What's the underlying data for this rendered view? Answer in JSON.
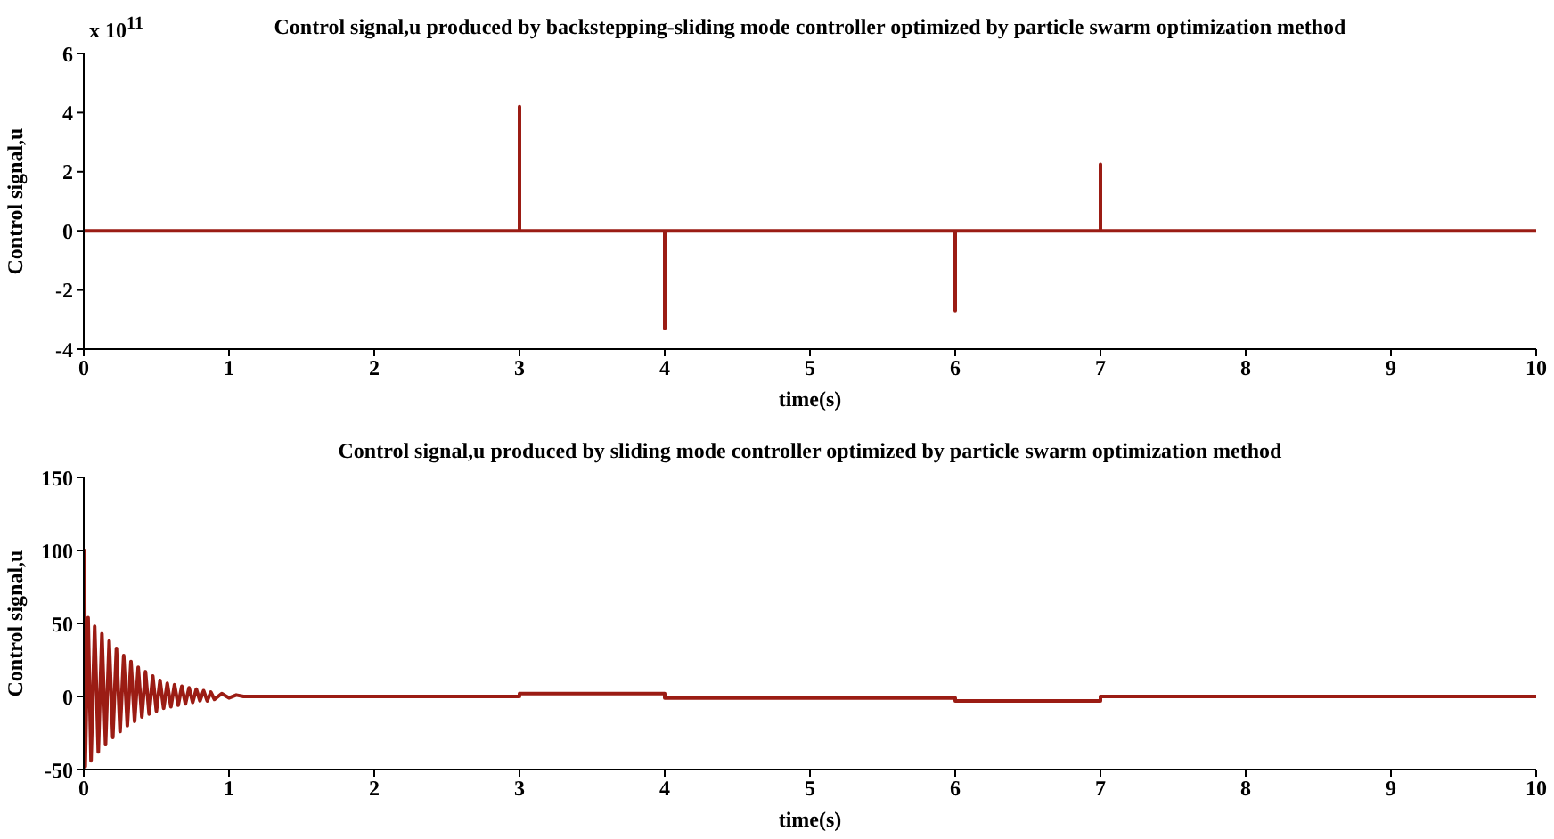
{
  "chart_data": [
    {
      "type": "line",
      "title": "Control signal,u produced by backstepping-sliding mode controller optimized by particle swarm optimization method",
      "xlabel": "time(s)",
      "ylabel": "Control signal,u",
      "annotations": [
        "x 10$^{11}$"
      ],
      "xlim": [
        0,
        10
      ],
      "xticks": [
        0,
        1,
        2,
        3,
        4,
        5,
        6,
        7,
        8,
        9,
        10
      ],
      "ylim": [
        -4,
        6
      ],
      "yticks": [
        -4,
        -2,
        0,
        2,
        4,
        6
      ],
      "x": [
        0,
        3,
        3,
        3,
        4,
        4,
        4,
        6,
        6,
        6,
        7,
        7,
        7,
        10
      ],
      "series": [
        {
          "color": "#9b1c14",
          "values": [
            0,
            0,
            4.2,
            0,
            0,
            -3.3,
            0,
            0,
            -2.7,
            0,
            0,
            2.25,
            0,
            0
          ]
        }
      ]
    },
    {
      "type": "line",
      "title": "Control signal,u produced by sliding mode controller optimized by particle swarm optimization method",
      "xlabel": "time(s)",
      "ylabel": "Control signal,u",
      "xlim": [
        0,
        10
      ],
      "xticks": [
        0,
        1,
        2,
        3,
        4,
        5,
        6,
        7,
        8,
        9,
        10
      ],
      "ylim": [
        -50,
        150
      ],
      "yticks": [
        -50,
        0,
        50,
        100,
        150
      ],
      "x": [
        0,
        0.005,
        0.01,
        0.03,
        0.05,
        0.075,
        0.1,
        0.125,
        0.15,
        0.175,
        0.2,
        0.225,
        0.25,
        0.275,
        0.3,
        0.325,
        0.35,
        0.375,
        0.4,
        0.425,
        0.45,
        0.475,
        0.5,
        0.525,
        0.55,
        0.575,
        0.6,
        0.625,
        0.65,
        0.675,
        0.7,
        0.725,
        0.75,
        0.775,
        0.8,
        0.825,
        0.85,
        0.875,
        0.9,
        0.95,
        1.0,
        1.05,
        1.1,
        3,
        3,
        4,
        4,
        6,
        6,
        7,
        7,
        10
      ],
      "series": [
        {
          "color": "#9b1c14",
          "values": [
            0,
            100,
            -48,
            54,
            -44,
            48,
            -38,
            43,
            -33,
            38,
            -28,
            33,
            -24,
            28,
            -20,
            24,
            -17,
            20,
            -14,
            17,
            -12,
            14,
            -10,
            11,
            -8,
            9,
            -7,
            8,
            -6,
            7,
            -5,
            6,
            -4,
            5,
            -3,
            4,
            -3,
            3,
            -2,
            2,
            -1,
            1,
            0,
            0,
            2,
            2,
            -1,
            -1,
            -3,
            -3,
            0,
            0
          ]
        }
      ]
    }
  ]
}
